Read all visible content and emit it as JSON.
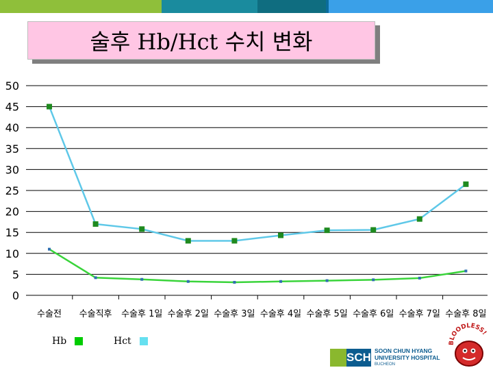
{
  "title": "술후 Hb/Hct 수치 변화",
  "colors": {
    "topbar": [
      "#8fbf3a",
      "#1a8b9e",
      "#0f6d80",
      "#0a6c9c",
      "#3aa0e8"
    ],
    "title_bg": "#ffc6e4",
    "hct": "#5ec8e8",
    "hb": "#39d43a",
    "marker": "#1f8a1f",
    "hb_marker": "#2f6fb0"
  },
  "chart_data": {
    "type": "line",
    "categories": [
      "수술전",
      "수술직후",
      "수술후 1일",
      "수술후 2일",
      "수술후 3일",
      "수술후 4일",
      "수술후 5일",
      "수술후 6일",
      "수술후 7일",
      "수술후 8일"
    ],
    "series": [
      {
        "name": "Hct",
        "values": [
          45,
          17,
          15.8,
          13,
          13,
          14.3,
          15.5,
          15.6,
          18.2,
          26.5
        ]
      },
      {
        "name": "Hb",
        "values": [
          11,
          4.2,
          3.8,
          3.3,
          3.1,
          3.3,
          3.5,
          3.7,
          4.1,
          5.8
        ]
      }
    ],
    "y_ticks": [
      "50",
      "45",
      "40",
      "35",
      "30",
      "25",
      "20",
      "15",
      "10",
      "5",
      "0"
    ],
    "ylim": [
      0,
      50
    ],
    "grid": true,
    "legend_placement": "bottom-left"
  },
  "legend": [
    {
      "label": "Hb",
      "color": "#00cc00"
    },
    {
      "label": "Hct",
      "color": "#66e0f0"
    }
  ],
  "logo": {
    "mark": "SCH",
    "line1": "SOON CHUN HYANG",
    "line2": "UNIVERSITY HOSPITAL",
    "line3": "BUCHEON"
  },
  "mascot": {
    "text": "BLOODLESS!",
    "icon": "blood-drop-mascot-icon"
  }
}
